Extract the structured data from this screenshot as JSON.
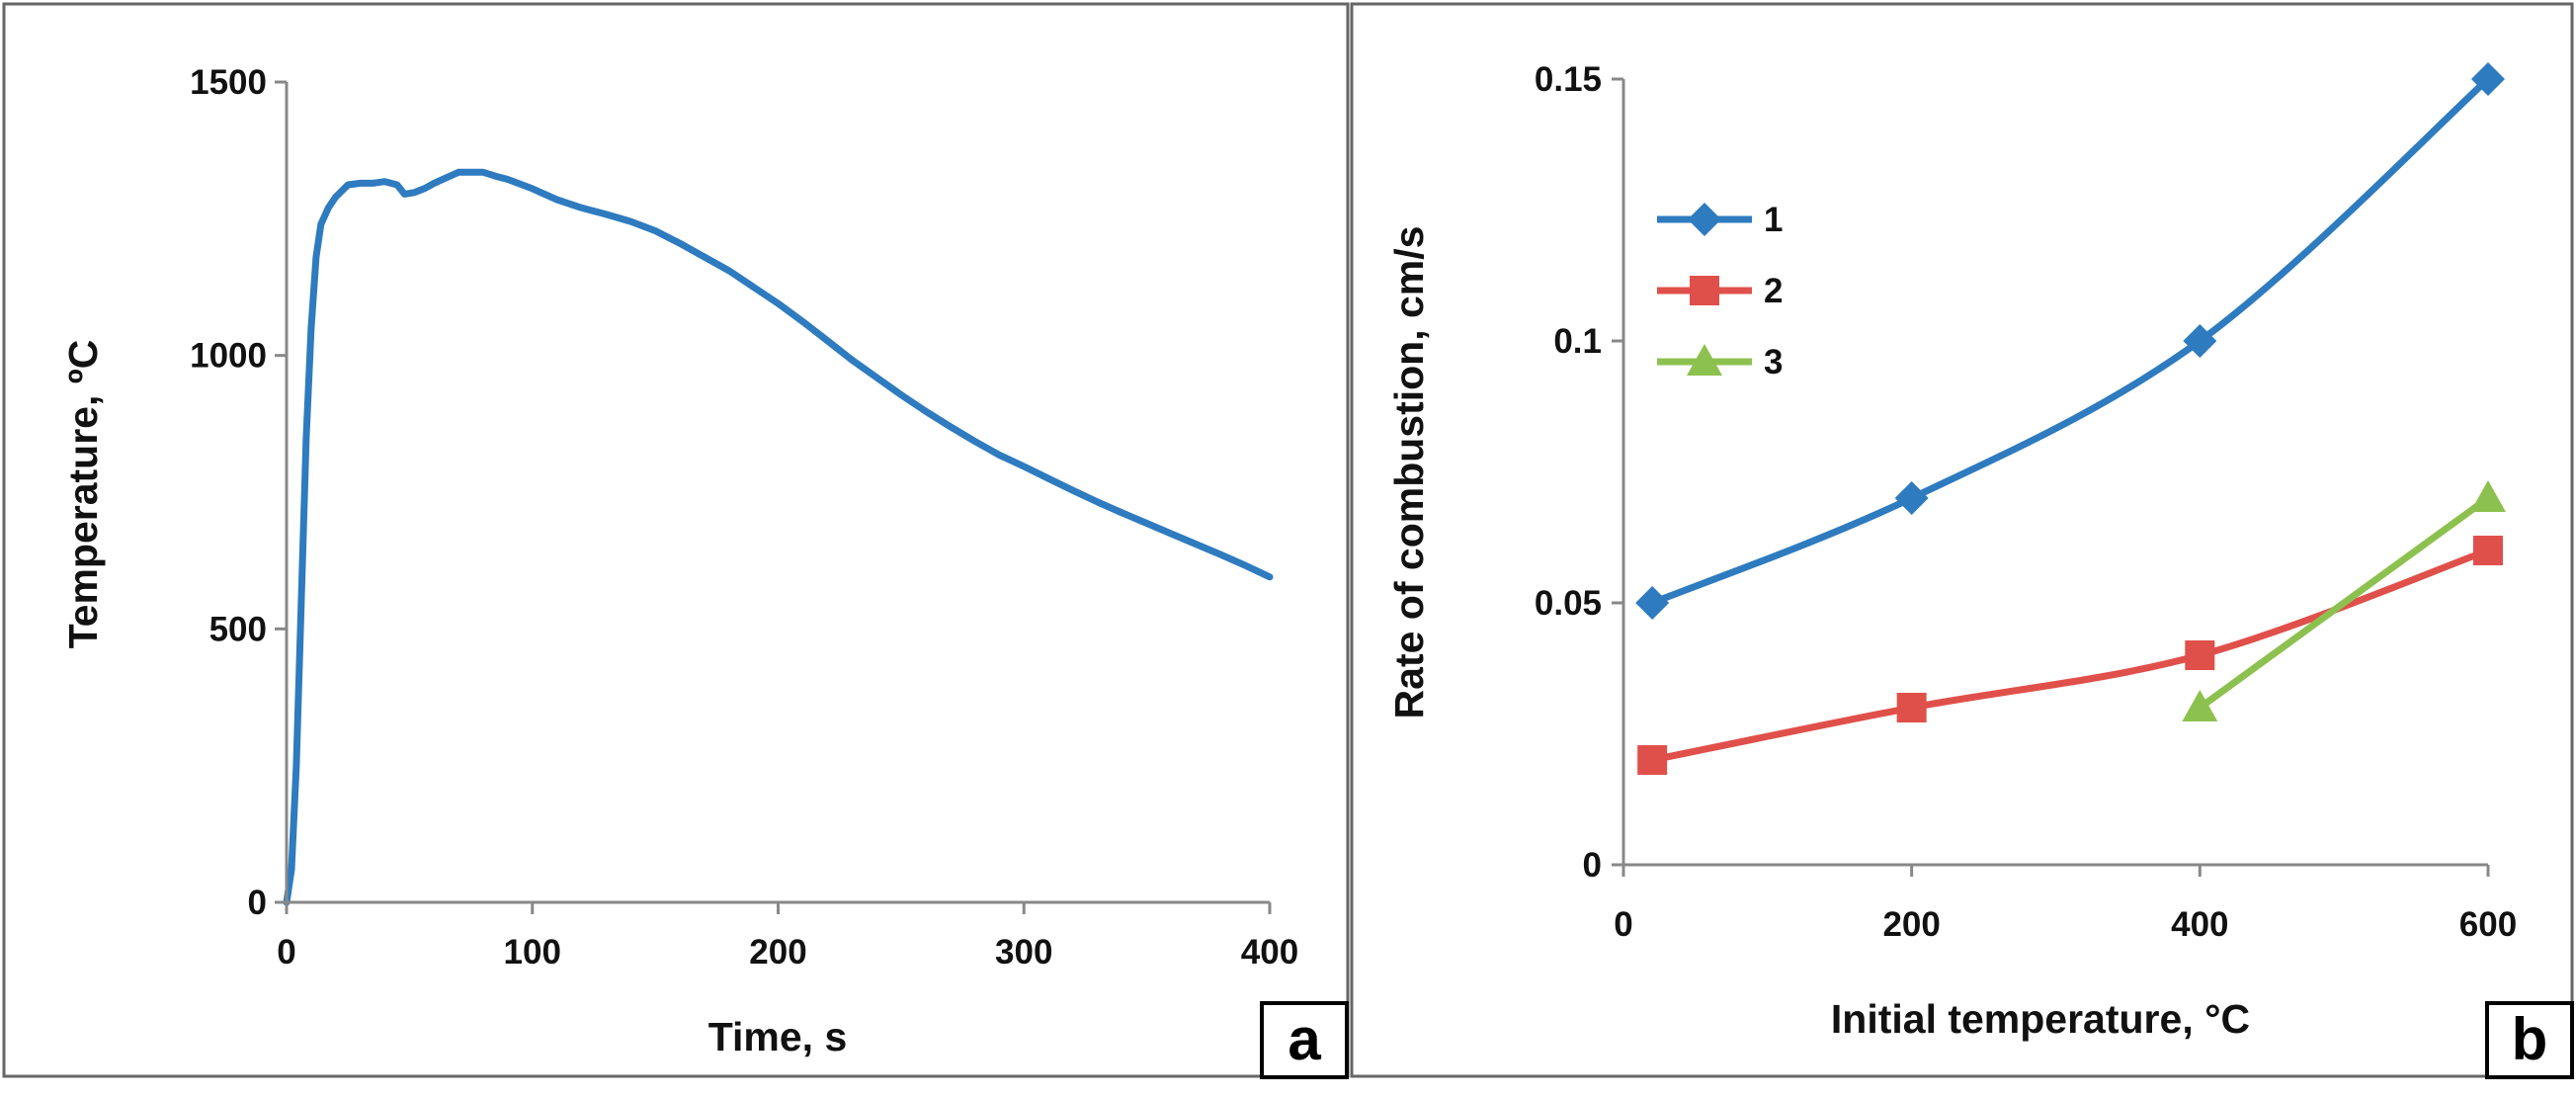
{
  "chart_data": [
    {
      "type": "line",
      "panel": "a",
      "panel_label": "a",
      "title": "",
      "xlabel": "Time, s",
      "ylabel": "Temperature, ºC",
      "xlim": [
        0,
        400
      ],
      "ylim": [
        0,
        1500
      ],
      "x_ticks": [
        "0",
        "100",
        "200",
        "300",
        "400"
      ],
      "y_ticks": [
        "0",
        "500",
        "1000",
        "1500"
      ],
      "grid": false,
      "legend": null,
      "series": [
        {
          "name": "Temperature",
          "color": "#2E7BBF",
          "marker": "none",
          "x": [
            0,
            2,
            4,
            6,
            8,
            10,
            12,
            14,
            17,
            20,
            25,
            30,
            35,
            40,
            45,
            48,
            52,
            56,
            60,
            65,
            70,
            75,
            80,
            85,
            90,
            100,
            110,
            120,
            130,
            140,
            150,
            160,
            170,
            180,
            190,
            200,
            210,
            220,
            230,
            240,
            250,
            260,
            270,
            280,
            290,
            300,
            310,
            320,
            330,
            340,
            350,
            360,
            370,
            380,
            390,
            400
          ],
          "y": [
            0,
            60,
            250,
            550,
            850,
            1050,
            1180,
            1240,
            1270,
            1290,
            1312,
            1315,
            1315,
            1318,
            1312,
            1295,
            1298,
            1305,
            1315,
            1325,
            1335,
            1335,
            1335,
            1328,
            1322,
            1305,
            1285,
            1270,
            1258,
            1245,
            1228,
            1205,
            1180,
            1155,
            1125,
            1095,
            1062,
            1027,
            992,
            960,
            928,
            898,
            870,
            843,
            818,
            797,
            775,
            753,
            732,
            712,
            693,
            674,
            655,
            636,
            616,
            595
          ]
        }
      ]
    },
    {
      "type": "line",
      "panel": "b",
      "panel_label": "b",
      "title": "",
      "xlabel": "Initial temperature, °C",
      "ylabel": "Rate of combustion, cm/s",
      "xlim": [
        0,
        600
      ],
      "ylim": [
        0,
        0.15
      ],
      "x_ticks": [
        "0",
        "200",
        "400",
        "600"
      ],
      "y_ticks": [
        "0",
        "0.05",
        "0.1",
        "0.15"
      ],
      "grid": false,
      "legend_position": "top-left",
      "series": [
        {
          "name": "1",
          "color": "#2E7BBF",
          "marker": "diamond",
          "x": [
            20,
            200,
            400,
            600
          ],
          "y": [
            0.05,
            0.07,
            0.1,
            0.15
          ]
        },
        {
          "name": "2",
          "color": "#E0504A",
          "marker": "square",
          "x": [
            20,
            200,
            400,
            600
          ],
          "y": [
            0.02,
            0.03,
            0.04,
            0.06
          ]
        },
        {
          "name": "3",
          "color": "#8DC14F",
          "marker": "triangle",
          "x": [
            400,
            600
          ],
          "y": [
            0.03,
            0.07
          ]
        }
      ]
    }
  ]
}
